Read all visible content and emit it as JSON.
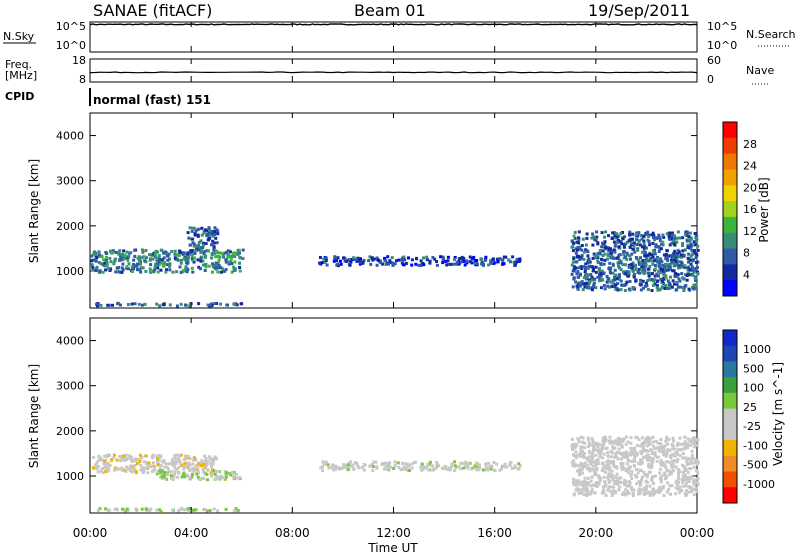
{
  "header": {
    "station": "SANAE (fitACF)",
    "beam": "Beam 01",
    "date": "19/Sep/2011"
  },
  "panel_labels": {
    "nsky": "N.Sky",
    "freq_line1": "Freq.",
    "freq_line2": "[MHz]",
    "cpid": "CPID",
    "nsearch": "N.Search",
    "nave": "Nave",
    "cpid_value": "normal (fast) 151"
  },
  "chart_data": [
    {
      "type": "line",
      "title": "",
      "left_axis": {
        "ticks": [
          "10^5",
          "10^0"
        ]
      },
      "right_axis": {
        "ticks": [
          "10^5",
          "10^0"
        ]
      },
      "series": [
        {
          "name": "N.Sky",
          "style": "solid"
        },
        {
          "name": "N.Search",
          "style": "dotted"
        }
      ],
      "x": [
        "00:00",
        "04:00",
        "08:00",
        "12:00",
        "16:00",
        "20:00",
        "00:00"
      ],
      "values_log10": [
        4.6,
        4.6,
        4.6,
        4.6,
        4.6,
        4.6,
        4.6
      ]
    },
    {
      "type": "scatter",
      "left_axis": {
        "label": "Freq. [MHz]",
        "ticks": [
          "18",
          "8"
        ]
      },
      "right_axis": {
        "label": "Nave",
        "ticks": [
          "60",
          "0"
        ]
      },
      "frequency_mhz": 12.2,
      "nave": 33
    },
    {
      "type": "heatmap",
      "ylabel": "Slant Range [km]",
      "yticks": [
        1000,
        2000,
        3000,
        4000
      ],
      "ylim": [
        180,
        4500
      ],
      "xlim_hours": [
        0,
        24
      ],
      "colorbar": {
        "label": "Power [dB]",
        "ticks": [
          "28",
          "24",
          "20",
          "16",
          "12",
          "8",
          "4"
        ],
        "range": [
          0,
          30
        ],
        "colors": [
          "#0000ff",
          "#1428a0",
          "#2e5aa8",
          "#3a8c7a",
          "#3cb43c",
          "#a0d21e",
          "#f0d200",
          "#f0a000",
          "#f07800",
          "#f03c00",
          "#ff0000"
        ]
      },
      "echo_regions": [
        {
          "t0": 0.0,
          "t1": 6.0,
          "r0": 1000,
          "r1": 1500,
          "level": 9
        },
        {
          "t0": 3.8,
          "t1": 5.0,
          "r0": 1500,
          "r1": 2000,
          "level": 7
        },
        {
          "t0": 0.2,
          "t1": 6.0,
          "r0": 250,
          "r1": 320,
          "level": 7
        },
        {
          "t0": 9.0,
          "t1": 17.0,
          "r0": 1150,
          "r1": 1350,
          "level": 5
        },
        {
          "t0": 19.0,
          "t1": 24.0,
          "r0": 600,
          "r1": 1900,
          "level": 7
        }
      ]
    },
    {
      "type": "heatmap",
      "ylabel": "Slant Range [km]",
      "yticks": [
        1000,
        2000,
        3000,
        4000
      ],
      "ylim": [
        180,
        4500
      ],
      "xlim_hours": [
        0,
        24
      ],
      "xticks": [
        "00:00",
        "04:00",
        "08:00",
        "12:00",
        "16:00",
        "20:00",
        "00:00"
      ],
      "xlabel": "Time UT",
      "colorbar": {
        "label": "Velocity [m s^-1]",
        "ticks": [
          "1000",
          "500",
          "100",
          "25",
          "-25",
          "-100",
          "-500",
          "-1000"
        ],
        "range": [
          -1000,
          1000
        ],
        "colors": [
          "#ff0000",
          "#f05000",
          "#f08c28",
          "#f0b400",
          "#c8c8c8",
          "#c8c8c8",
          "#78c83c",
          "#3ca03c",
          "#2878a0",
          "#1e46b4",
          "#1428c8"
        ]
      },
      "echo_regions": [
        {
          "t0": 0.0,
          "t1": 5.0,
          "r0": 1100,
          "r1": 1500,
          "level": -200
        },
        {
          "t0": 2.5,
          "t1": 6.0,
          "r0": 950,
          "r1": 1150,
          "level": 80
        },
        {
          "t0": 0.2,
          "t1": 6.0,
          "r0": 250,
          "r1": 320,
          "level": 90
        },
        {
          "t0": 9.0,
          "t1": 17.0,
          "r0": 1150,
          "r1": 1350,
          "level": 0
        },
        {
          "t0": 19.0,
          "t1": 24.0,
          "r0": 600,
          "r1": 1900,
          "level": -150
        }
      ]
    }
  ]
}
